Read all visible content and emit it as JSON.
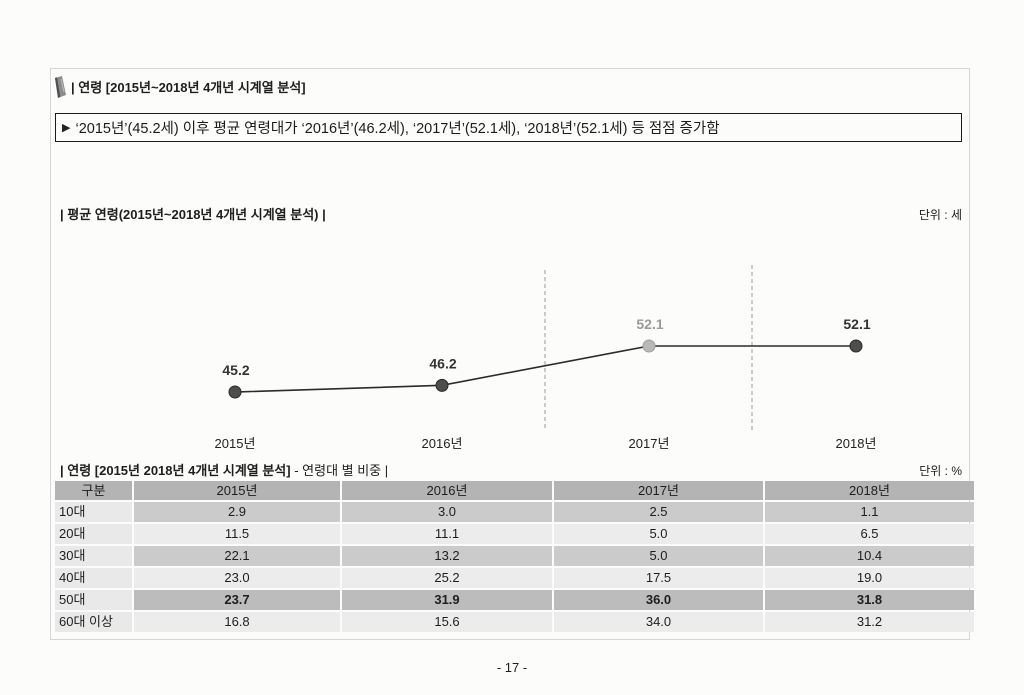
{
  "header": {
    "icon": "leaf-icon",
    "title": "| 연령 [2015년~2018년 4개년 시계열 분석]"
  },
  "summary": {
    "marker": "▶",
    "text": "‘2015년’(45.2세) 이후 평균 연령대가 ‘2016년’(46.2세), ‘2017년’(52.1세), ‘2018년’(52.1세) 등 점점 증가함"
  },
  "chart_data": [
    {
      "type": "line",
      "title": "| 평균 연령(2015년~2018년  4개년 시계열 분석) |",
      "unit": "단위 : 세",
      "x": [
        "2015년",
        "2016년",
        "2017년",
        "2018년"
      ],
      "series": [
        {
          "values": [
            45.2,
            46.2,
            52.1,
            52.1
          ]
        }
      ],
      "data_labels": [
        "45.2",
        "46.2",
        "52.1",
        "52.1"
      ],
      "highlight_index": 2,
      "grid": false,
      "colors": {
        "line": "#2b2b2b",
        "point": "#4d4d4d",
        "highlight_point": "#b9b9b9",
        "label": "#333333",
        "highlight_label": "#9a9a9a",
        "divider": "#9a9a9a"
      }
    },
    {
      "type": "table",
      "title_main": "| 연령 [2015년 2018년 4개년 시계열 분석]",
      "title_sub": " - 연령대 별 비중 |",
      "unit": "단위 : %",
      "headers": [
        "구분",
        "2015년",
        "2016년",
        "2017년",
        "2018년"
      ],
      "rows": [
        {
          "label": "10대",
          "values": [
            "2.9",
            "3.0",
            "2.5",
            "1.1"
          ]
        },
        {
          "label": "20대",
          "values": [
            "11.5",
            "11.1",
            "5.0",
            "6.5"
          ]
        },
        {
          "label": "30대",
          "values": [
            "22.1",
            "13.2",
            "5.0",
            "10.4"
          ]
        },
        {
          "label": "40대",
          "values": [
            "23.0",
            "25.2",
            "17.5",
            "19.0"
          ]
        },
        {
          "label": "50대",
          "values": [
            "23.7",
            "31.9",
            "36.0",
            "31.8"
          ],
          "bold": true
        },
        {
          "label": "60대 이상",
          "values": [
            "16.8",
            "15.6",
            "34.0",
            "31.2"
          ]
        }
      ]
    }
  ],
  "footer": {
    "page": "- 17 -"
  }
}
